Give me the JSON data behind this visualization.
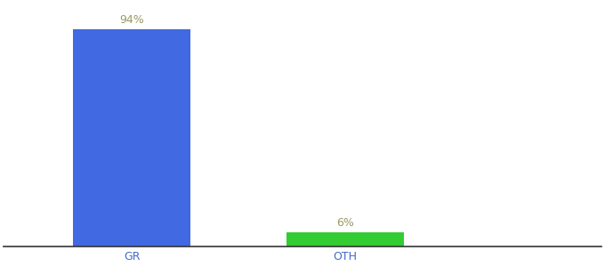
{
  "categories": [
    "GR",
    "OTH"
  ],
  "values": [
    94,
    6
  ],
  "bar_colors": [
    "#4169e1",
    "#33cc33"
  ],
  "bar_labels": [
    "94%",
    "6%"
  ],
  "background_color": "#ffffff",
  "label_color": "#999966",
  "tick_color": "#4169cc",
  "ylim": [
    0,
    105
  ],
  "bar_width": 0.55,
  "figsize": [
    6.8,
    3.0
  ],
  "dpi": 100,
  "spine_color": "#333333",
  "xlabel_fontsize": 9,
  "label_fontsize": 9,
  "x_positions": [
    1,
    2
  ],
  "xlim": [
    0.4,
    3.2
  ]
}
